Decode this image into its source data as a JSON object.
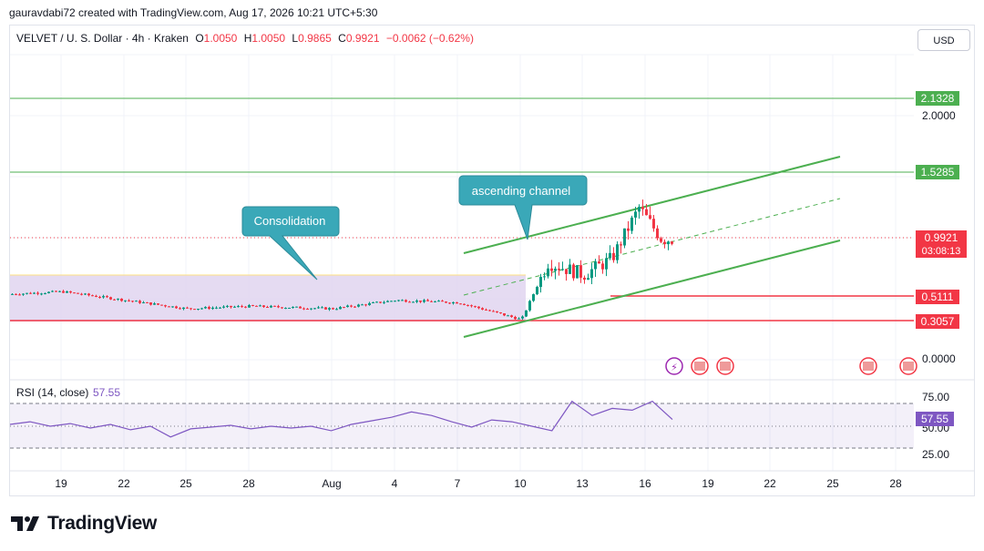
{
  "header": {
    "credit": "gauravdabi72 created with TradingView.com, Aug 17, 2026 10:21 UTC+5:30"
  },
  "legend": {
    "symbol": "VELVET / U. S. Dollar · 4h · Kraken",
    "open_label": "O",
    "open": "1.0050",
    "high_label": "H",
    "high": "1.0050",
    "low_label": "L",
    "low": "0.9865",
    "close_label": "C",
    "close": "0.9921",
    "change": "−0.0062 (−0.62%)"
  },
  "currency_button": "USD",
  "brand": {
    "name": "TradingView"
  },
  "colors": {
    "up": "#089981",
    "down": "#f23645",
    "green_line": "#4caf50",
    "red_line": "#f23645",
    "consolidation_fill": "#e1d5f0",
    "callout": "#3aa8b8",
    "rsi_line": "#7e57c2"
  },
  "chart_data": {
    "type": "candlestick",
    "price_axis": {
      "ticks": [
        "2.0000",
        "0.0000"
      ],
      "range": [
        0.0,
        2.0
      ]
    },
    "time_axis": {
      "labels": [
        "19",
        "22",
        "25",
        "28",
        "Aug",
        "4",
        "7",
        "10",
        "13",
        "16",
        "19",
        "22",
        "25",
        "28"
      ]
    },
    "horizontal_levels": [
      {
        "value": 2.1328,
        "label": "2.1328",
        "color": "green"
      },
      {
        "value": 1.5285,
        "label": "1.5285",
        "color": "green"
      },
      {
        "value": 0.5111,
        "label": "0.5111",
        "color": "red"
      },
      {
        "value": 0.3057,
        "label": "0.3057",
        "color": "red"
      }
    ],
    "last_price": {
      "value": 0.9921,
      "label": "0.9921",
      "countdown": "03:08:13"
    },
    "annotations": [
      {
        "text": "Consolidation"
      },
      {
        "text": "ascending channel"
      }
    ],
    "consolidation_zone": {
      "from": "Jul 17",
      "to": "Aug 10",
      "high": 0.7,
      "low": 0.33
    },
    "price_series_approx": [
      {
        "date": "Jul 17",
        "close": 0.54
      },
      {
        "date": "Jul 20",
        "close": 0.56
      },
      {
        "date": "Jul 24",
        "close": 0.42
      },
      {
        "date": "Jul 28",
        "close": 0.44
      },
      {
        "date": "Aug 1",
        "close": 0.42
      },
      {
        "date": "Aug 5",
        "close": 0.49
      },
      {
        "date": "Aug 8",
        "close": 0.47
      },
      {
        "date": "Aug 10",
        "close": 0.33
      },
      {
        "date": "Aug 11",
        "close": 0.8
      },
      {
        "date": "Aug 13",
        "close": 0.7
      },
      {
        "date": "Aug 14",
        "close": 0.83
      },
      {
        "date": "Aug 15",
        "close": 1.25
      },
      {
        "date": "Aug 16",
        "close": 0.99
      },
      {
        "date": "Aug 17",
        "close": 0.9921
      }
    ],
    "rsi": {
      "label": "RSI (14, close)",
      "value": "57.55",
      "ticks": [
        "75.00",
        "50.00",
        "25.00"
      ],
      "band": [
        30,
        70
      ],
      "values_approx": [
        52,
        55,
        50,
        53,
        48,
        52,
        46,
        50,
        38,
        47,
        49,
        51,
        47,
        50,
        48,
        50,
        45,
        52,
        56,
        60,
        66,
        62,
        55,
        49,
        57,
        55,
        50,
        45,
        78,
        62,
        70,
        68,
        78,
        57.55
      ]
    }
  }
}
